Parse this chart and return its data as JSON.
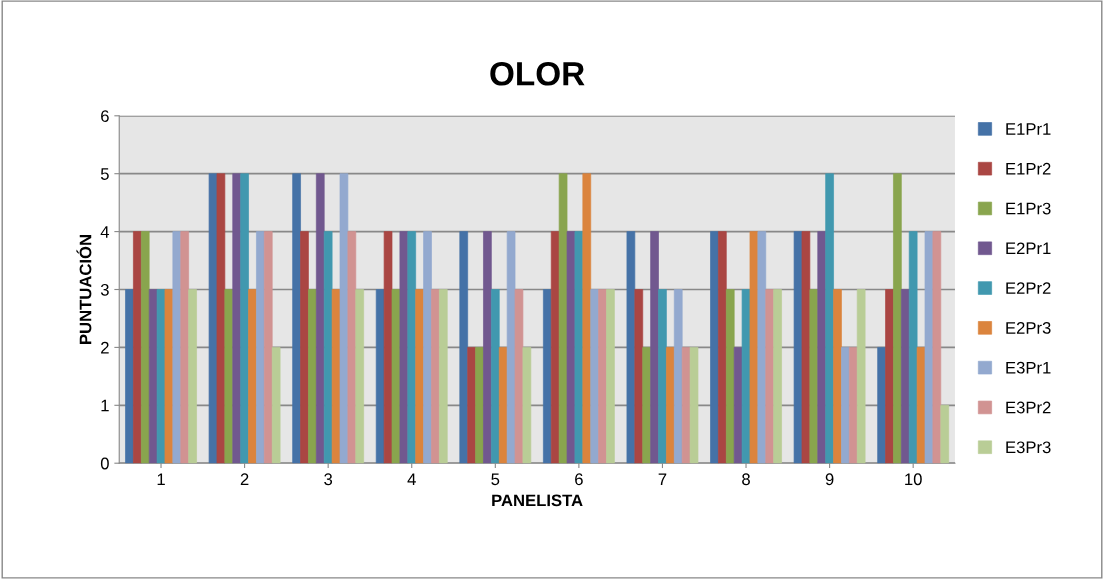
{
  "chart_data": {
    "type": "bar",
    "title": "OLOR",
    "xlabel": "PANELISTA",
    "ylabel": "PUNTUACIÓN",
    "categories": [
      "1",
      "2",
      "3",
      "4",
      "5",
      "6",
      "7",
      "8",
      "9",
      "10"
    ],
    "series": [
      {
        "name": "E1Pr1",
        "color": "#4572a7",
        "values": [
          3,
          5,
          5,
          3,
          4,
          3,
          4,
          4,
          4,
          2
        ]
      },
      {
        "name": "E1Pr2",
        "color": "#aa4643",
        "values": [
          4,
          5,
          4,
          4,
          2,
          4,
          3,
          4,
          4,
          3
        ]
      },
      {
        "name": "E1Pr3",
        "color": "#89a54e",
        "values": [
          4,
          3,
          3,
          3,
          2,
          5,
          2,
          3,
          3,
          5
        ]
      },
      {
        "name": "E2Pr1",
        "color": "#71588f",
        "values": [
          3,
          5,
          5,
          4,
          4,
          4,
          4,
          2,
          4,
          3
        ]
      },
      {
        "name": "E2Pr2",
        "color": "#4198af",
        "values": [
          3,
          5,
          4,
          4,
          3,
          4,
          3,
          3,
          5,
          4
        ]
      },
      {
        "name": "E2Pr3",
        "color": "#db843d",
        "values": [
          3,
          3,
          3,
          3,
          2,
          5,
          2,
          4,
          3,
          2
        ]
      },
      {
        "name": "E3Pr1",
        "color": "#93a9cf",
        "values": [
          4,
          4,
          5,
          4,
          4,
          3,
          3,
          4,
          2,
          4
        ]
      },
      {
        "name": "E3Pr2",
        "color": "#d19392",
        "values": [
          4,
          4,
          4,
          3,
          3,
          3,
          2,
          3,
          2,
          4
        ]
      },
      {
        "name": "E3Pr3",
        "color": "#b9cd96",
        "values": [
          3,
          2,
          3,
          3,
          2,
          3,
          2,
          3,
          3,
          1
        ]
      }
    ],
    "ylim": [
      0,
      6
    ],
    "yticks": [
      0,
      1,
      2,
      3,
      4,
      5,
      6
    ],
    "grid": "y",
    "legend": "right"
  }
}
